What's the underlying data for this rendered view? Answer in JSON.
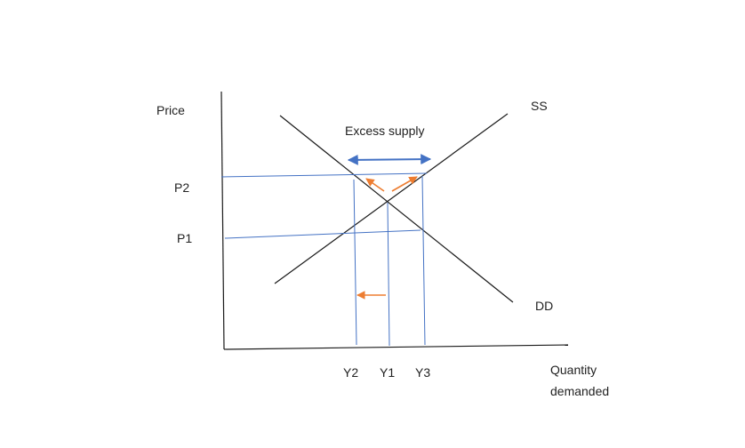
{
  "diagram": {
    "axis_labels": {
      "y": "Price",
      "x_line1": "Quantity",
      "x_line2": "demanded"
    },
    "curves": {
      "supply": "SS",
      "demand": "DD"
    },
    "annotation": "Excess supply",
    "price_levels": [
      "P2",
      "P1"
    ],
    "quantity_levels": [
      "Y2",
      "Y1",
      "Y3"
    ],
    "colors": {
      "axis": "#1a1a1a",
      "curve": "#1a1a1a",
      "guide": "#4472c4",
      "arrow_blue": "#4472c4",
      "arrow_orange": "#ed7d31"
    }
  }
}
